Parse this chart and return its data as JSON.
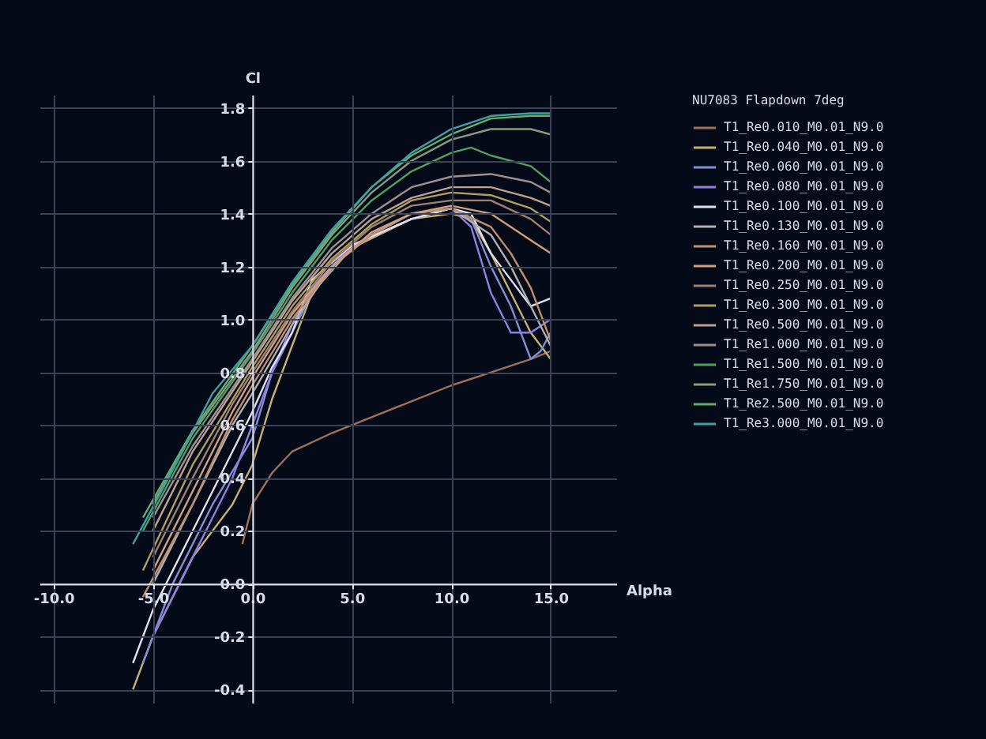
{
  "chart_data": {
    "type": "line",
    "xlabel": "Alpha",
    "ylabel": "Cl",
    "legend_title": "NU7083 Flapdown 7deg",
    "legend": "top right",
    "grid": true,
    "xlim": [
      -10.7,
      18.3
    ],
    "ylim": [
      -0.45,
      1.85
    ],
    "xticks": [
      {
        "value": -10,
        "label": "-10.0"
      },
      {
        "value": -5,
        "label": "-5.0"
      },
      {
        "value": 0,
        "label": "0.0"
      },
      {
        "value": 5,
        "label": "5.0"
      },
      {
        "value": 10,
        "label": "10.0"
      },
      {
        "value": 15,
        "label": "15.0"
      }
    ],
    "yticks": [
      -0.4,
      -0.2,
      {
        "value": 0,
        "label": "0.0"
      },
      0.2,
      0.4,
      0.6,
      0.8,
      {
        "value": 1,
        "label": "1.0"
      },
      1.2,
      1.4,
      1.6,
      1.8
    ],
    "series": [
      {
        "name": "T1_Re0.010_M0.01_N9.0",
        "color": "#a0705a",
        "x": [
          -0.5,
          0,
          1,
          2,
          4,
          6,
          8,
          10,
          12,
          14,
          15
        ],
        "values": [
          0.15,
          0.3,
          0.42,
          0.5,
          0.57,
          0.63,
          0.69,
          0.75,
          0.8,
          0.85,
          0.88
        ]
      },
      {
        "name": "T1_Re0.040_M0.01_N9.0",
        "color": "#c8b070",
        "x": [
          -6,
          -5,
          -3,
          -1,
          0,
          1,
          2,
          3,
          5,
          8,
          10,
          11,
          12,
          13,
          14,
          15
        ],
        "values": [
          -0.4,
          -0.2,
          0.1,
          0.3,
          0.45,
          0.7,
          0.9,
          1.1,
          1.27,
          1.38,
          1.4,
          1.38,
          1.25,
          1.1,
          0.95,
          0.85
        ]
      },
      {
        "name": "T1_Re0.060_M0.01_N9.0",
        "color": "#8090d0",
        "x": [
          -5.5,
          -4,
          -2,
          0,
          1,
          2,
          3,
          5,
          8,
          10,
          11,
          12,
          13,
          14,
          14.5,
          15
        ],
        "values": [
          -0.3,
          0,
          0.3,
          0.55,
          0.8,
          0.95,
          1.1,
          1.28,
          1.38,
          1.42,
          1.38,
          1.2,
          1.05,
          0.85,
          0.88,
          0.95
        ]
      },
      {
        "name": "T1_Re0.080_M0.01_N9.0",
        "color": "#9080e0",
        "x": [
          -5,
          -3,
          -1,
          0,
          1,
          2,
          3,
          5,
          8,
          10,
          11,
          12,
          13,
          14,
          15
        ],
        "values": [
          -0.2,
          0.1,
          0.4,
          0.6,
          0.8,
          0.98,
          1.12,
          1.28,
          1.38,
          1.42,
          1.35,
          1.1,
          0.95,
          0.95,
          1.0
        ]
      },
      {
        "name": "T1_Re0.100_M0.01_N9.0",
        "color": "#e0e0f0",
        "x": [
          -6,
          -5,
          -4,
          -2,
          0,
          1,
          2,
          3,
          5,
          8,
          10,
          11,
          12,
          13,
          14,
          15
        ],
        "values": [
          -0.3,
          -0.1,
          0.05,
          0.35,
          0.65,
          0.82,
          0.95,
          1.15,
          1.28,
          1.38,
          1.42,
          1.4,
          1.25,
          1.15,
          1.05,
          1.08
        ]
      },
      {
        "name": "T1_Re0.130_M0.01_N9.0",
        "color": "#b0b0b0",
        "x": [
          -5,
          -3,
          -1,
          0,
          2,
          4,
          6,
          8,
          10,
          12,
          13,
          14,
          15
        ],
        "values": [
          0,
          0.3,
          0.6,
          0.72,
          0.98,
          1.2,
          1.32,
          1.4,
          1.42,
          1.32,
          1.2,
          1.05,
          0.9
        ]
      },
      {
        "name": "T1_Re0.160_M0.01_N9.0",
        "color": "#c09070",
        "x": [
          -5.5,
          -3,
          -1,
          0,
          2,
          4,
          6,
          8,
          10,
          12,
          13,
          14,
          15
        ],
        "values": [
          -0.05,
          0.3,
          0.62,
          0.75,
          1.0,
          1.2,
          1.32,
          1.4,
          1.42,
          1.35,
          1.25,
          1.12,
          0.92
        ]
      },
      {
        "name": "T1_Re0.200_M0.01_N9.0",
        "color": "#d0a080",
        "x": [
          -5,
          -3,
          -1,
          0,
          2,
          4,
          6,
          8,
          10,
          12,
          14,
          15
        ],
        "values": [
          0.05,
          0.35,
          0.65,
          0.78,
          1.02,
          1.2,
          1.33,
          1.4,
          1.43,
          1.4,
          1.3,
          1.25
        ]
      },
      {
        "name": "T1_Re0.250_M0.01_N9.0",
        "color": "#a08070",
        "x": [
          -5,
          -3,
          -1,
          0,
          2,
          4,
          6,
          8,
          10,
          12,
          14,
          15
        ],
        "values": [
          0.1,
          0.4,
          0.68,
          0.8,
          1.03,
          1.22,
          1.35,
          1.43,
          1.45,
          1.45,
          1.38,
          1.32
        ]
      },
      {
        "name": "T1_Re0.300_M0.01_N9.0",
        "color": "#b0a060",
        "x": [
          -5.5,
          -3,
          0,
          2,
          4,
          6,
          8,
          10,
          12,
          14,
          15
        ],
        "values": [
          0.05,
          0.45,
          0.82,
          1.05,
          1.23,
          1.36,
          1.45,
          1.48,
          1.47,
          1.42,
          1.37
        ]
      },
      {
        "name": "T1_Re0.500_M0.01_N9.0",
        "color": "#c0a090",
        "x": [
          -5,
          -3,
          0,
          2,
          4,
          6,
          8,
          10,
          12,
          14,
          15
        ],
        "values": [
          0.2,
          0.5,
          0.84,
          1.07,
          1.25,
          1.38,
          1.46,
          1.5,
          1.5,
          1.46,
          1.43
        ]
      },
      {
        "name": "T1_Re1.000_M0.01_N9.0",
        "color": "#a09090",
        "x": [
          -5,
          -3,
          0,
          2,
          4,
          6,
          8,
          10,
          12,
          14,
          15
        ],
        "values": [
          0.25,
          0.52,
          0.85,
          1.08,
          1.27,
          1.4,
          1.5,
          1.54,
          1.55,
          1.52,
          1.48
        ]
      },
      {
        "name": "T1_Re1.500_M0.01_N9.0",
        "color": "#50a060",
        "x": [
          -5.5,
          -3,
          0,
          2,
          4,
          6,
          8,
          10,
          11,
          12,
          14,
          15
        ],
        "values": [
          0.2,
          0.55,
          0.87,
          1.1,
          1.3,
          1.45,
          1.56,
          1.63,
          1.65,
          1.62,
          1.58,
          1.52
        ]
      },
      {
        "name": "T1_Re1.750_M0.01_N9.0",
        "color": "#8a9a80",
        "x": [
          -5,
          -3,
          0,
          2,
          4,
          6,
          8,
          10,
          12,
          14,
          15
        ],
        "values": [
          0.3,
          0.57,
          0.88,
          1.12,
          1.32,
          1.48,
          1.6,
          1.68,
          1.72,
          1.72,
          1.7
        ]
      },
      {
        "name": "T1_Re2.500_M0.01_N9.0",
        "color": "#60b070",
        "x": [
          -5.5,
          -3,
          0,
          2,
          4,
          6,
          8,
          10,
          12,
          14,
          15
        ],
        "values": [
          0.25,
          0.58,
          0.9,
          1.13,
          1.33,
          1.5,
          1.62,
          1.7,
          1.76,
          1.77,
          1.77
        ]
      },
      {
        "name": "T1_Re3.000_M0.01_N9.0",
        "color": "#40a0a0",
        "x": [
          -6,
          -4,
          -2,
          0,
          2,
          4,
          6,
          8,
          10,
          12,
          14,
          15
        ],
        "values": [
          0.15,
          0.43,
          0.72,
          0.9,
          1.14,
          1.34,
          1.5,
          1.63,
          1.72,
          1.77,
          1.78,
          1.78
        ]
      }
    ]
  }
}
